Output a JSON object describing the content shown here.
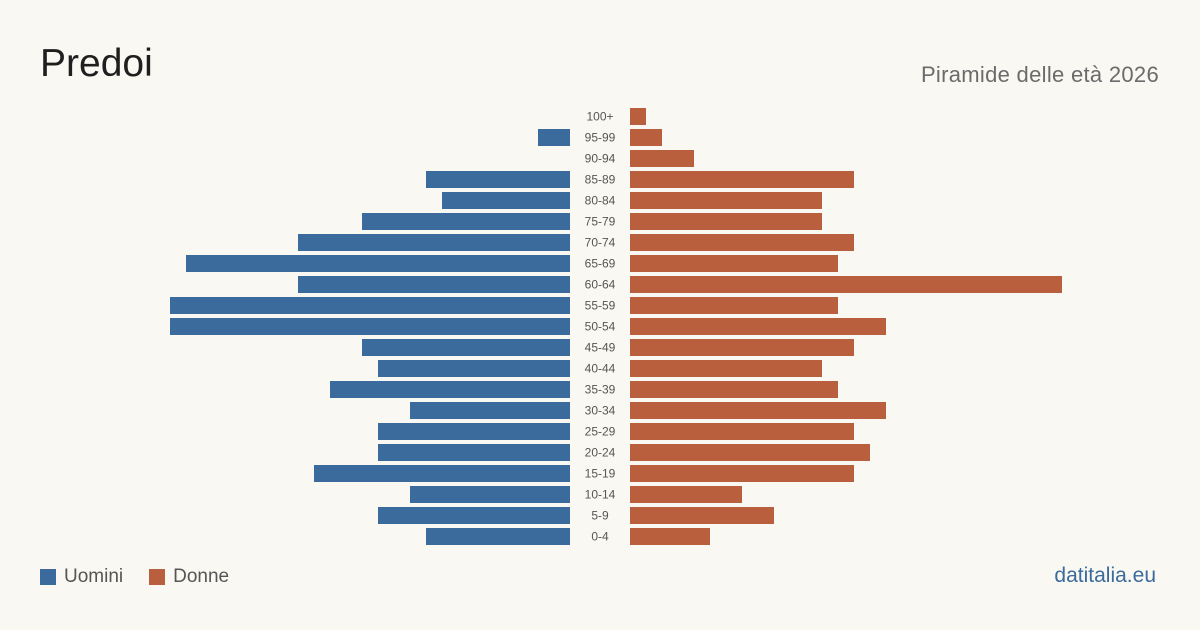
{
  "header": {
    "title": "Predoi",
    "subtitle": "Piramide delle età 2026"
  },
  "legend": {
    "men_label": "Uomini",
    "women_label": "Donne"
  },
  "credit": "datitalia.eu",
  "colors": {
    "men": "#3b6a9c",
    "women": "#b95f3d",
    "background": "#faf8f3"
  },
  "chart_data": {
    "type": "bar",
    "orientation": "horizontal-pyramid",
    "categories": [
      "100+",
      "95-99",
      "90-94",
      "85-89",
      "80-84",
      "75-79",
      "70-74",
      "65-69",
      "60-64",
      "55-59",
      "50-54",
      "45-49",
      "40-44",
      "35-39",
      "30-34",
      "25-29",
      "20-24",
      "15-19",
      "10-14",
      "5-9",
      "0-4"
    ],
    "series": [
      {
        "name": "Uomini",
        "values": [
          0,
          2,
          0,
          9,
          8,
          13,
          17,
          24,
          17,
          25,
          25,
          13,
          12,
          15,
          10,
          12,
          12,
          16,
          10,
          12,
          9
        ]
      },
      {
        "name": "Donne",
        "values": [
          1,
          2,
          4,
          14,
          12,
          12,
          14,
          13,
          27,
          13,
          16,
          14,
          12,
          13,
          16,
          14,
          15,
          14,
          7,
          9,
          5
        ]
      }
    ],
    "title": "Piramide delle età 2026",
    "legend_position": "bottom-left",
    "grid": false
  }
}
